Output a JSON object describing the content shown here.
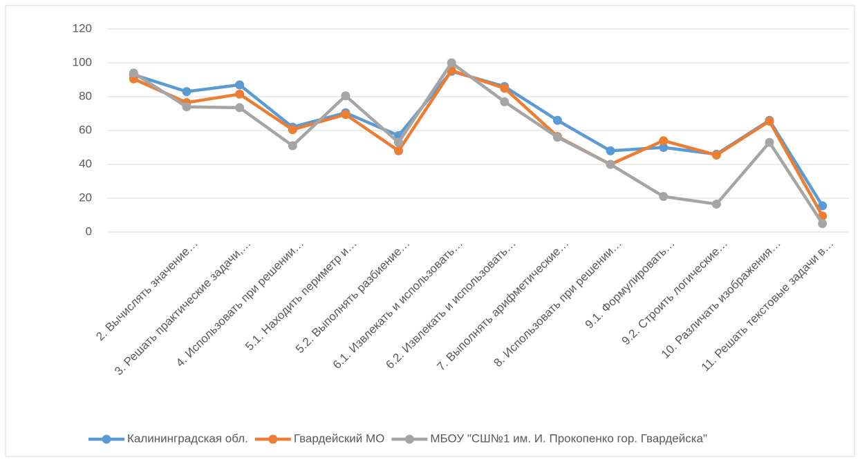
{
  "chart_data": {
    "type": "line",
    "categories": [
      null,
      "2. Вычислять значение…",
      "3. Решать практические задачи,…",
      "4. Использовать при решении…",
      "5.1. Находить периметр и…",
      "5.2. Выполнять разбиение…",
      "6.1. Извлекать и использовать…",
      "6.2. Извлекать и использовать…",
      "7. Выполнять арифметические…",
      "8. Использовать при решении…",
      "9.1. Формулировать…",
      "9.2. Строить логические…",
      "10. Различать изображения…",
      "11. Решать текстовые задачи в…"
    ],
    "series": [
      {
        "name": "Калининградская обл.",
        "color": "#5b9bd5",
        "values": [
          93,
          83,
          87,
          62,
          70.5,
          57,
          95,
          86,
          66,
          48,
          50,
          46,
          66,
          15.5
        ]
      },
      {
        "name": "Гвардейский МО",
        "color": "#ed7d31",
        "values": [
          90.5,
          76.5,
          81.5,
          60.5,
          69.5,
          48,
          95.5,
          85,
          56.5,
          40,
          54,
          45.5,
          65.5,
          9.5
        ]
      },
      {
        "name": "МБОУ \"СШ№1 им. И. Прокопенко гор. Гвардейска\"",
        "color": "#a5a5a5",
        "values": [
          94,
          74,
          73.5,
          51,
          80.5,
          53,
          100,
          77,
          56,
          40,
          21,
          16.5,
          53,
          5
        ]
      }
    ],
    "ylim": [
      0,
      120
    ],
    "yticks": [
      0,
      20,
      40,
      60,
      80,
      100,
      120
    ],
    "grid": true,
    "legend": "bottom"
  }
}
